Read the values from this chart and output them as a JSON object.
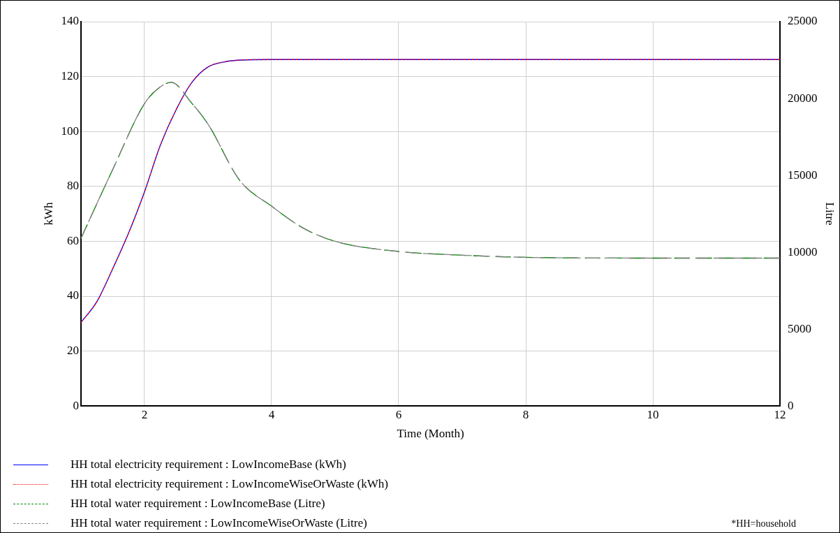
{
  "chart_data": {
    "type": "line",
    "xlabel": "Time (Month)",
    "ylabel": "kWh",
    "y2label": "Litre",
    "xlim": [
      1,
      12
    ],
    "xticks": [
      2,
      4,
      6,
      8,
      10,
      12
    ],
    "ylim": [
      0,
      140
    ],
    "yticks": [
      0,
      20,
      40,
      60,
      80,
      100,
      120,
      140
    ],
    "y2lim": [
      0,
      25000
    ],
    "y2ticks": [
      0,
      5000,
      10000,
      15000,
      20000,
      25000
    ],
    "grid": true,
    "legend": "bottom",
    "marker": "none",
    "annotations": [
      "*HH=household"
    ],
    "series": [
      {
        "name": "HH total electricity requirement : LowIncomeBase (kWh)",
        "color": "#0000ff",
        "line_style": "solid",
        "x": [
          1,
          1.25,
          1.5,
          1.75,
          2,
          2.25,
          2.5,
          2.75,
          3,
          3.25,
          3.5,
          4,
          6,
          8,
          10,
          12
        ],
        "values": [
          30.4,
          38,
          50,
          63,
          78,
          95,
          108,
          118,
          123.5,
          125.3,
          126,
          126.2,
          126.2,
          126.2,
          126.2,
          126.2
        ]
      },
      {
        "name": "HH total electricity requirement : LowIncomeWiseOrWaste (kWh)",
        "color": "#ff0000",
        "line_style": "dotted",
        "x": [
          1,
          1.25,
          1.5,
          1.75,
          2,
          2.25,
          2.5,
          2.75,
          3,
          3.25,
          3.5,
          4,
          6,
          8,
          10,
          12
        ],
        "values": [
          30.4,
          38,
          50,
          63,
          78,
          95,
          108,
          118,
          123.5,
          125.3,
          126,
          126.2,
          126.2,
          126.2,
          126.2,
          126.2
        ]
      },
      {
        "name": "HH total water requirement : LowIncomeBase (Litre)",
        "color": "#008000",
        "line_style": "dashed",
        "axis": "y2",
        "x": [
          1,
          1.5,
          2,
          2.25,
          2.42,
          2.75,
          3,
          3.5,
          4,
          4.5,
          5,
          6,
          7,
          8,
          10,
          12
        ],
        "values": [
          10900,
          15380,
          19670,
          20760,
          21050,
          19670,
          18330,
          14670,
          13000,
          11570,
          10710,
          10050,
          9810,
          9670,
          9620,
          9620
        ]
      },
      {
        "name": "HH total water requirement : LowIncomeWiseOrWaste (Litre)",
        "color": "#808080",
        "line_style": "dashed",
        "axis": "y2",
        "x": [
          1,
          1.5,
          2,
          2.25,
          2.42,
          2.75,
          3,
          3.5,
          4,
          4.5,
          5,
          6,
          7,
          8,
          10,
          12
        ],
        "values": [
          10900,
          15380,
          19670,
          20760,
          21050,
          19670,
          18330,
          14670,
          13000,
          11570,
          10710,
          10050,
          9810,
          9670,
          9620,
          9620
        ]
      }
    ]
  }
}
